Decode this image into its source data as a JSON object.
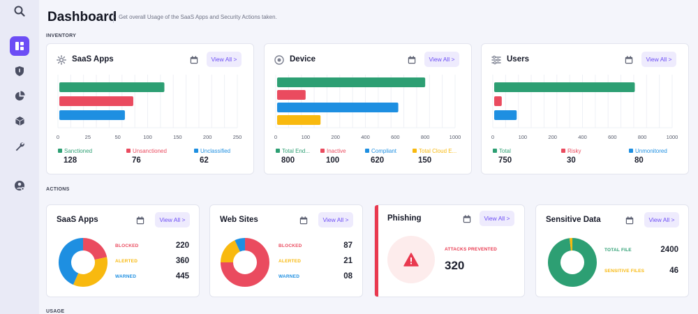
{
  "header": {
    "title": "Dashboard",
    "subtitle": "Get overall Usage of the SaaS Apps and Security Actions taken."
  },
  "sections": {
    "inventory": "INVENTORY",
    "actions": "ACTIONS",
    "usage": "USAGE"
  },
  "view_all_label": "View All >",
  "sidebar": [
    {
      "icon": "search-icon"
    },
    {
      "icon": "dashboard-icon",
      "active": true
    },
    {
      "icon": "shield-icon"
    },
    {
      "icon": "pie-chart-icon"
    },
    {
      "icon": "cube-icon"
    },
    {
      "icon": "wrench-icon"
    },
    {
      "icon": "user-settings-icon"
    }
  ],
  "colors": {
    "accent": "#6c4df5",
    "green": "#2d9f73",
    "red": "#ea4b5f",
    "blue": "#1e8fe1",
    "yellow": "#f8b90f"
  },
  "inventory": [
    {
      "title": "SaaS Apps",
      "icon": "sparkle-icon",
      "chart_data": {
        "type": "bar",
        "orientation": "horizontal",
        "categories": [
          "Sanctioned",
          "Unsanctioned",
          "Unclassified"
        ],
        "values": [
          128,
          76,
          62
        ],
        "xlim": [
          0,
          250
        ],
        "ticks": [
          0,
          25,
          50,
          100,
          150,
          200,
          250
        ],
        "colors": [
          "#2d9f73",
          "#ea4b5f",
          "#1e8fe1"
        ]
      },
      "legend": [
        {
          "label": "Sanctioned",
          "value": "128"
        },
        {
          "label": "Unsanctioned",
          "value": "76"
        },
        {
          "label": "Unclassified",
          "value": "62"
        }
      ]
    },
    {
      "title": "Device",
      "icon": "device-icon",
      "chart_data": {
        "type": "bar",
        "orientation": "horizontal",
        "categories": [
          "Total End...",
          "Inactive",
          "Compliant",
          "Total Cloud E..."
        ],
        "values": [
          800,
          100,
          620,
          150
        ],
        "xlim": [
          0,
          1000
        ],
        "ticks": [
          0,
          100,
          200,
          400,
          600,
          800,
          1000
        ],
        "colors": [
          "#2d9f73",
          "#ea4b5f",
          "#1e8fe1",
          "#f8b90f"
        ]
      },
      "legend": [
        {
          "label": "Total End...",
          "value": "800"
        },
        {
          "label": "Inactive",
          "value": "100"
        },
        {
          "label": "Compliant",
          "value": "620"
        },
        {
          "label": "Total Cloud E...",
          "value": "150"
        }
      ]
    },
    {
      "title": "Users",
      "icon": "users-icon",
      "chart_data": {
        "type": "bar",
        "orientation": "horizontal",
        "categories": [
          "Total",
          "Risky",
          "Unmonitored"
        ],
        "values": [
          750,
          30,
          80
        ],
        "xlim": [
          0,
          1000
        ],
        "ticks": [
          0,
          100,
          200,
          400,
          600,
          800,
          1000
        ],
        "colors": [
          "#2d9f73",
          "#ea4b5f",
          "#1e8fe1"
        ]
      },
      "legend": [
        {
          "label": "Total",
          "value": "750"
        },
        {
          "label": "Risky",
          "value": "30"
        },
        {
          "label": "Unmonitored",
          "value": "80"
        }
      ]
    }
  ],
  "actions": {
    "saas": {
      "title": "SaaS Apps",
      "chart_data": {
        "type": "pie",
        "donut": true,
        "labels": [
          "BLOCKED",
          "ALERTED",
          "WARNED"
        ],
        "values": [
          220,
          360,
          445
        ],
        "colors": [
          "#ea4b5f",
          "#f8b90f",
          "#1e8fe1"
        ]
      },
      "stats": [
        {
          "label": "BLOCKED",
          "value": "220"
        },
        {
          "label": "ALERTED",
          "value": "360"
        },
        {
          "label": "WARNED",
          "value": "445"
        }
      ]
    },
    "web": {
      "title": "Web Sites",
      "chart_data": {
        "type": "pie",
        "donut": true,
        "labels": [
          "BLOCKED",
          "ALERTED",
          "WARNED"
        ],
        "values": [
          87,
          21,
          8
        ],
        "colors": [
          "#ea4b5f",
          "#f8b90f",
          "#1e8fe1"
        ]
      },
      "stats": [
        {
          "label": "BLOCKED",
          "value": "87"
        },
        {
          "label": "ALERTED",
          "value": "21"
        },
        {
          "label": "WARNED",
          "value": "08"
        }
      ]
    },
    "phishing": {
      "title": "Phishing",
      "label": "ATTACKS PREVENTED",
      "value": "320",
      "icon": "warning-icon"
    },
    "sensitive": {
      "title": "Sensitive Data",
      "chart_data": {
        "type": "pie",
        "donut": true,
        "labels": [
          "TOTAL FILE",
          "SENSITIVE FILES"
        ],
        "values": [
          2400,
          46
        ],
        "colors": [
          "#2d9f73",
          "#f8b90f"
        ]
      },
      "stats": [
        {
          "label": "TOTAL FILE",
          "value": "2400"
        },
        {
          "label": "SENSITIVE FILES",
          "value": "46"
        }
      ]
    }
  }
}
